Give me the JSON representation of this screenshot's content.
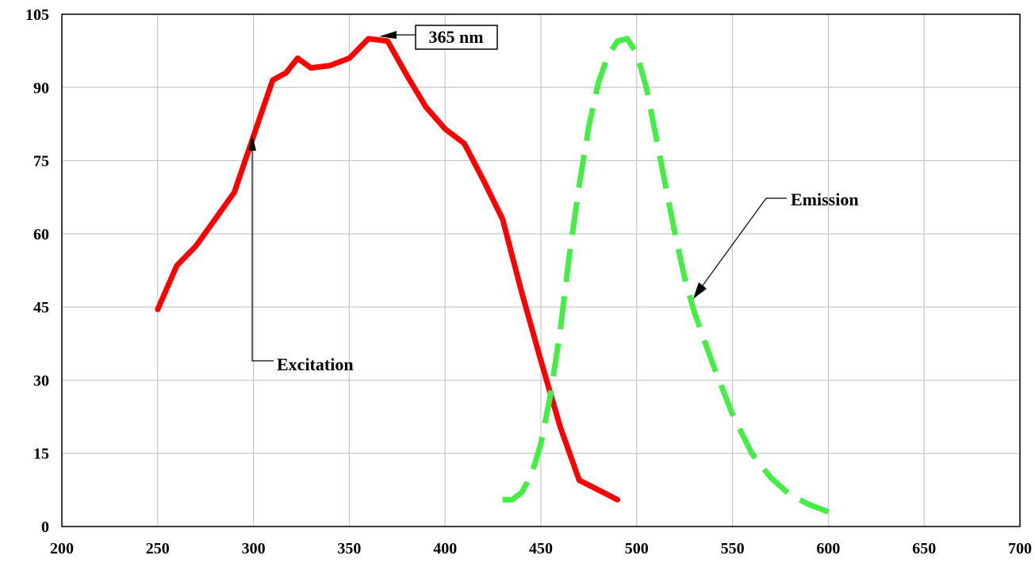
{
  "chart_data": {
    "type": "line",
    "title": "",
    "xlabel": "",
    "ylabel": "",
    "xlim": [
      200,
      700
    ],
    "ylim": [
      0,
      105
    ],
    "x_ticks": [
      200,
      250,
      300,
      350,
      400,
      450,
      500,
      550,
      600,
      650,
      700
    ],
    "y_ticks": [
      0,
      15,
      30,
      45,
      60,
      75,
      90,
      105
    ],
    "grid": true,
    "legend": "none",
    "series": [
      {
        "key": "excitation",
        "color": "#ff0000",
        "style": "solid",
        "points": [
          [
            250,
            44.5
          ],
          [
            260,
            53.5
          ],
          [
            270,
            57.5
          ],
          [
            280,
            63
          ],
          [
            290,
            68.5
          ],
          [
            300,
            80
          ],
          [
            310,
            91.5
          ],
          [
            317,
            93
          ],
          [
            323,
            96
          ],
          [
            330,
            94
          ],
          [
            340,
            94.5
          ],
          [
            350,
            96
          ],
          [
            360,
            100
          ],
          [
            370,
            99.5
          ],
          [
            380,
            92.5
          ],
          [
            390,
            86
          ],
          [
            400,
            81.5
          ],
          [
            410,
            78.5
          ],
          [
            420,
            71
          ],
          [
            430,
            63
          ],
          [
            440,
            48
          ],
          [
            450,
            34
          ],
          [
            460,
            20.5
          ],
          [
            470,
            9.5
          ],
          [
            480,
            7.5
          ],
          [
            490,
            5.5
          ]
        ]
      },
      {
        "key": "emission",
        "color": "#44ee44",
        "style": "dashed",
        "points": [
          [
            430,
            5.5
          ],
          [
            435,
            5.5
          ],
          [
            440,
            7
          ],
          [
            445,
            10.5
          ],
          [
            450,
            17
          ],
          [
            455,
            27
          ],
          [
            460,
            40
          ],
          [
            465,
            56
          ],
          [
            470,
            70
          ],
          [
            475,
            82
          ],
          [
            480,
            91
          ],
          [
            485,
            96.5
          ],
          [
            490,
            99.5
          ],
          [
            495,
            100
          ],
          [
            500,
            97
          ],
          [
            505,
            90
          ],
          [
            510,
            80
          ],
          [
            515,
            70
          ],
          [
            520,
            60
          ],
          [
            525,
            51
          ],
          [
            530,
            44
          ],
          [
            540,
            33
          ],
          [
            550,
            23
          ],
          [
            560,
            15
          ],
          [
            570,
            10
          ],
          [
            580,
            6.5
          ],
          [
            590,
            4.5
          ],
          [
            600,
            3
          ]
        ]
      }
    ],
    "annotations": [
      {
        "key": "peak",
        "text": "365 nm",
        "boxed": true,
        "target": [
          367,
          100
        ]
      },
      {
        "key": "excitation",
        "text": "Excitation",
        "boxed": false,
        "target": [
          300,
          80
        ]
      },
      {
        "key": "emission",
        "text": "Emission",
        "boxed": false,
        "target": [
          530,
          46
        ]
      }
    ]
  }
}
